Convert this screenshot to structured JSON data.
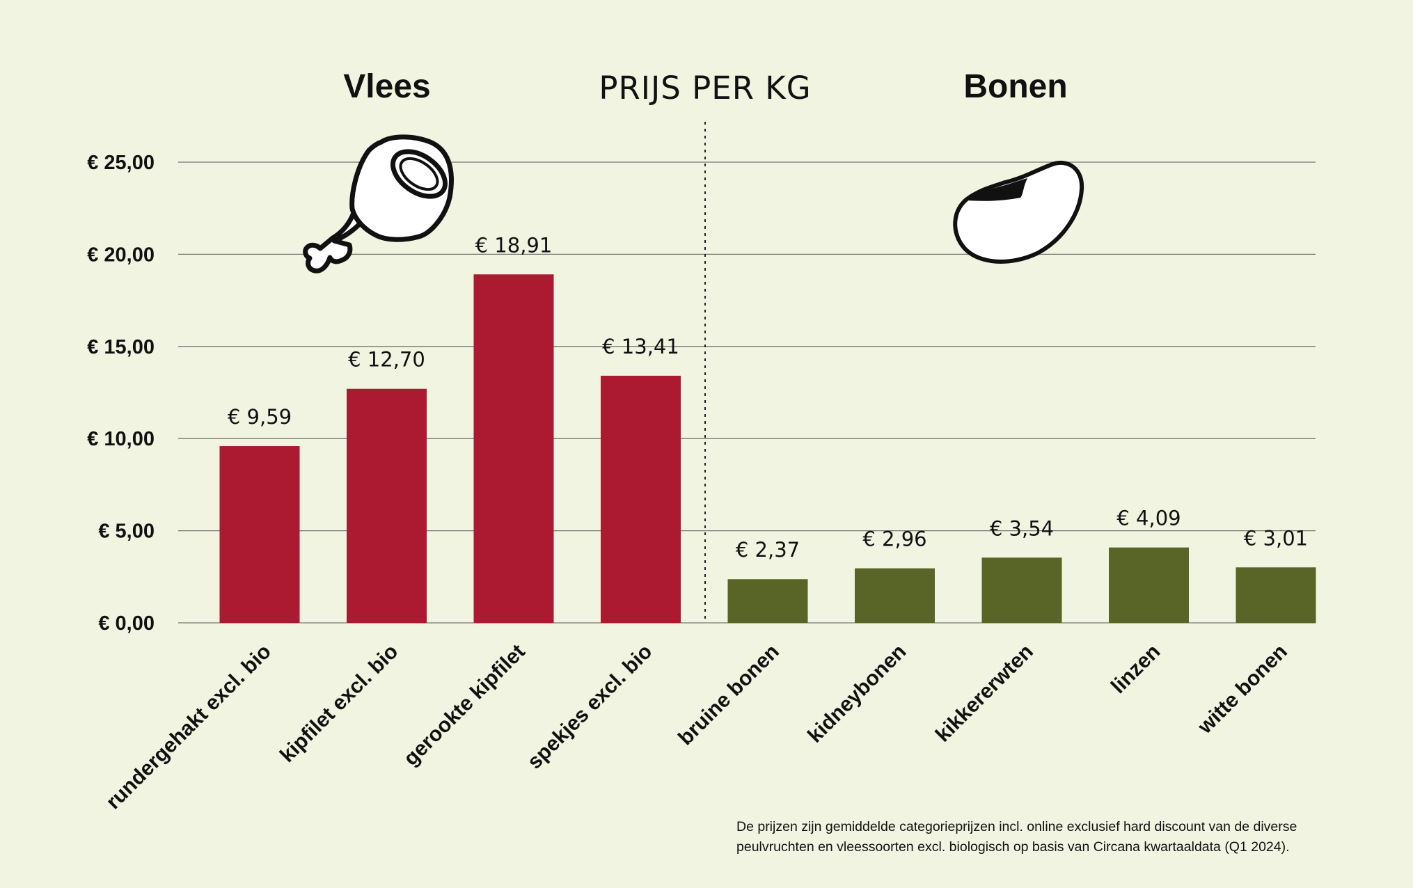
{
  "chart_data": {
    "type": "bar",
    "title": "PRIJS PER KG",
    "groups": [
      {
        "label": "Vlees",
        "color": "#ab1a31",
        "icon": "chicken-leg-icon"
      },
      {
        "label": "Bonen",
        "color": "#596526",
        "icon": "bean-icon"
      }
    ],
    "categories": [
      "rundergehakt excl. bio",
      "kipfilet excl. bio",
      "gerookte kipfilet",
      "spekjes excl. bio",
      "bruine bonen",
      "kidneybonen",
      "kikkererwten",
      "linzen",
      "witte bonen"
    ],
    "values": [
      9.59,
      12.7,
      18.91,
      13.41,
      2.37,
      2.96,
      3.54,
      4.09,
      3.01
    ],
    "value_labels": [
      "€ 9,59",
      "€ 12,70",
      "€ 18,91",
      "€ 13,41",
      "€ 2,37",
      "€ 2,96",
      "€ 3,54",
      "€ 4,09",
      "€ 3,01"
    ],
    "group_of_category": [
      0,
      0,
      0,
      0,
      1,
      1,
      1,
      1,
      1
    ],
    "ylim": [
      0,
      25
    ],
    "yticks": [
      0,
      5,
      10,
      15,
      20,
      25
    ],
    "ytick_labels": [
      "€ 0,00",
      "€ 5,00",
      "€ 10,00",
      "€ 15,00",
      "€ 20,00",
      "€ 25,00"
    ],
    "grid": true,
    "xlabel": "",
    "ylabel": ""
  },
  "footnote": {
    "line1": "De prijzen zijn gemiddelde categorieprijzen incl. online exclusief hard discount van de diverse",
    "line2": "peulvruchten en vleessoorten excl. biologisch op basis van Circana kwartaaldata (Q1 2024)."
  }
}
